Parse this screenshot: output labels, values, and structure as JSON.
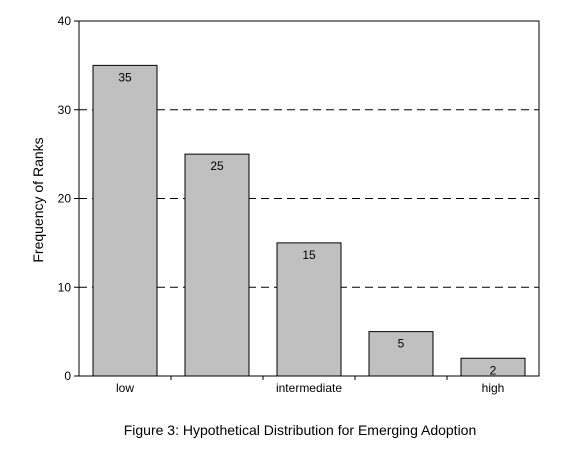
{
  "chart_data": {
    "type": "bar",
    "categories": [
      "",
      "",
      "",
      "",
      ""
    ],
    "x_tick_labels": [
      "low",
      "",
      "intermediate",
      "",
      "high"
    ],
    "values": [
      35,
      25,
      15,
      5,
      2
    ],
    "data_labels": [
      "35",
      "25",
      "15",
      "5",
      "2"
    ],
    "title": "",
    "xlabel": "",
    "ylabel": "Frequency of Ranks",
    "ylim": [
      0,
      40
    ],
    "y_ticks": [
      0,
      10,
      20,
      30,
      40
    ],
    "grid": "horizontal dashed",
    "bar_color": "#c0c0c0",
    "caption": "Figure 3: Hypothetical Distribution for Emerging Adoption"
  }
}
